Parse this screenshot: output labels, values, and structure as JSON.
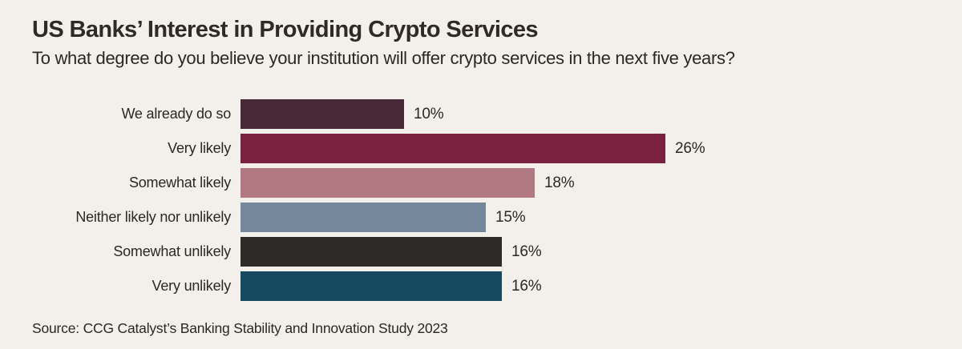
{
  "page": {
    "background_color": "#f3f0eb",
    "text_color": "#2b2724"
  },
  "header": {
    "title": "US Banks’ Interest in Providing Crypto Services",
    "subtitle": "To what degree do you believe your institution will offer crypto services in the next five years?"
  },
  "footer": {
    "source": "Source: CCG Catalyst’s Banking Stability and Innovation Study 2023"
  },
  "chart_data": {
    "type": "bar",
    "orientation": "horizontal",
    "title": "US Banks’ Interest in Providing Crypto Services",
    "subtitle": "To what degree do you believe your institution will offer crypto services in the next five years?",
    "categories": [
      "We already do so",
      "Very likely",
      "Somewhat likely",
      "Neither likely nor unlikely",
      "Somewhat unlikely",
      "Very unlikely"
    ],
    "values": [
      10,
      26,
      18,
      15,
      16,
      16
    ],
    "value_labels": [
      "10%",
      "26%",
      "18%",
      "15%",
      "16%",
      "16%"
    ],
    "bar_colors": [
      "#472836",
      "#7b2140",
      "#b17a82",
      "#75889b",
      "#2e2a27",
      "#164a60"
    ],
    "xlabel": "",
    "ylabel": "",
    "xlim": [
      0,
      26
    ],
    "grid": false,
    "legend": false,
    "source": "Source: CCG Catalyst’s Banking Stability and Innovation Study 2023"
  }
}
